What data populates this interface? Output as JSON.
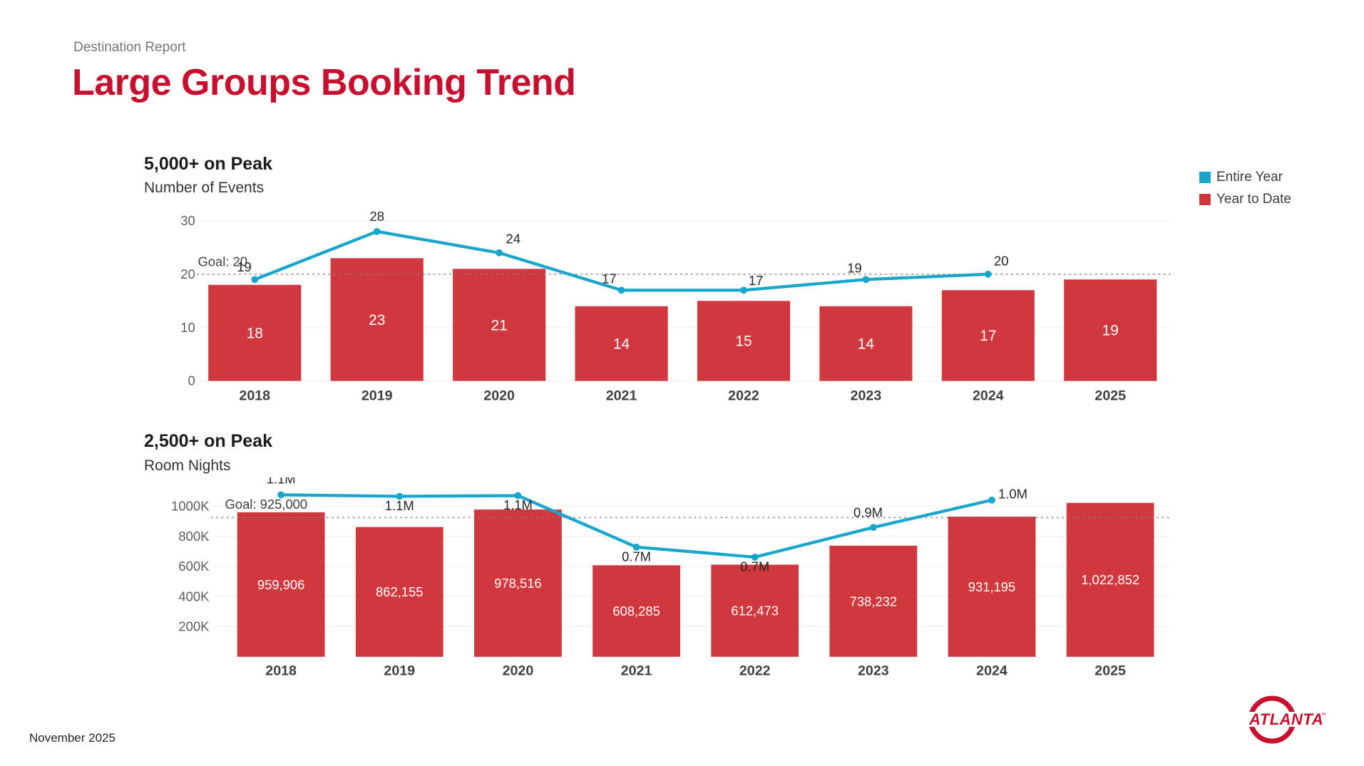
{
  "page": {
    "report_label": "Destination Report",
    "title": "Large Groups Booking Trend",
    "footer_date": "November 2025",
    "logo_text": "ATLANTA",
    "logo_tm": "™"
  },
  "colors": {
    "title_red": "#C8102E",
    "bar_red": "#D0383E",
    "line_teal": "#18A6CC",
    "goal_gray": "#7f7f7f"
  },
  "legend": {
    "position": "top-right",
    "entire_year": {
      "label": "Entire Year",
      "color": "#18A6CC"
    },
    "year_to_date": {
      "label": "Year to Date",
      "color": "#D0383E"
    }
  },
  "chart_data": [
    {
      "type": "bar+line",
      "title": "5,000+ on Peak",
      "subtitle": "Number of Events",
      "categories": [
        "2018",
        "2019",
        "2020",
        "2021",
        "2022",
        "2023",
        "2024",
        "2025"
      ],
      "series": [
        {
          "name": "Year to Date",
          "type": "bar",
          "values": [
            18,
            23,
            21,
            14,
            15,
            14,
            17,
            19
          ],
          "labels": [
            "18",
            "23",
            "21",
            "14",
            "15",
            "14",
            "17",
            "19"
          ]
        },
        {
          "name": "Entire Year",
          "type": "line",
          "values": [
            19,
            28,
            24,
            17,
            17,
            19,
            20
          ],
          "labels": [
            "19",
            "28",
            "24",
            "17",
            "17",
            "19",
            "20"
          ]
        }
      ],
      "goal": {
        "value": 20,
        "label": "Goal: 20"
      },
      "y_axis": {
        "ticks": [
          {
            "value": 30,
            "label": "30"
          },
          {
            "value": 20,
            "label": "20"
          },
          {
            "value": 10,
            "label": "10"
          },
          {
            "value": 0,
            "label": "0"
          }
        ],
        "range": [
          0,
          32
        ]
      },
      "grid": true,
      "legend_position": "top-right"
    },
    {
      "type": "bar+line",
      "title": "2,500+ on Peak",
      "subtitle": "Room Nights",
      "categories": [
        "2018",
        "2019",
        "2020",
        "2021",
        "2022",
        "2023",
        "2024",
        "2025"
      ],
      "series": [
        {
          "name": "Year to Date",
          "type": "bar",
          "values": [
            959906,
            862155,
            978516,
            608285,
            612473,
            738232,
            931195,
            1022852
          ],
          "labels": [
            "959,906",
            "862,155",
            "978,516",
            "608,285",
            "612,473",
            "738,232",
            "931,195",
            "1,022,852"
          ]
        },
        {
          "name": "Entire Year",
          "type": "line",
          "values": [
            1076000,
            1066000,
            1071000,
            729000,
            662000,
            860000,
            1041000
          ],
          "labels": [
            "1.1M",
            "1.1M",
            "1.1M",
            "0.7M",
            "0.7M",
            "0.9M",
            "1.0M"
          ]
        }
      ],
      "goal": {
        "value": 925000,
        "label": "Goal: 925,000"
      },
      "y_axis": {
        "ticks": [
          {
            "value": 1000000,
            "label": "1000K"
          },
          {
            "value": 800000,
            "label": "800K"
          },
          {
            "value": 600000,
            "label": "600K"
          },
          {
            "value": 400000,
            "label": "400K"
          },
          {
            "value": 200000,
            "label": "200K"
          }
        ],
        "range": [
          0,
          1150000
        ]
      },
      "grid": true,
      "legend_position": "top-right"
    }
  ]
}
